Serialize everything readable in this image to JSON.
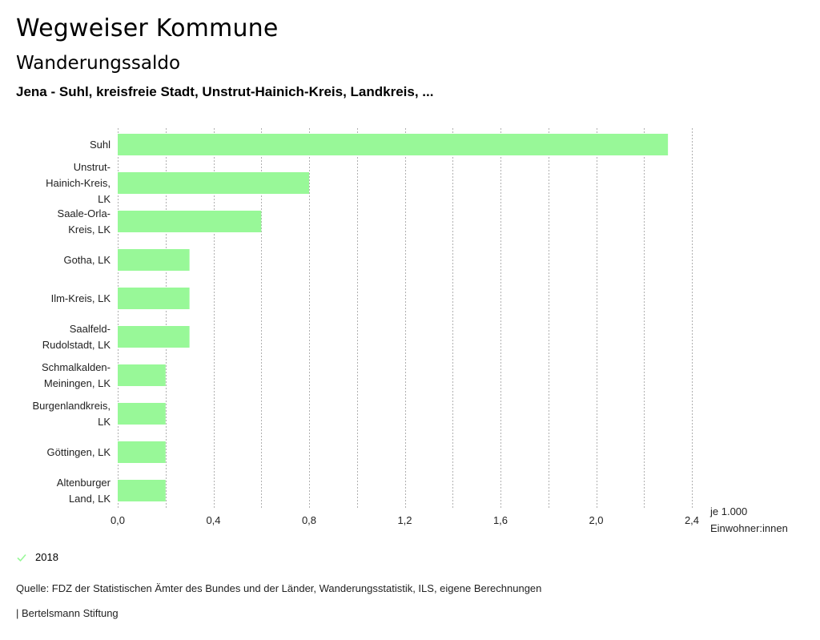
{
  "header": {
    "title": "Wegweiser Kommune",
    "subtitle": "Wanderungssaldo",
    "region": "Jena - Suhl, kreisfreie Stadt, Unstrut-Hainich-Kreis, Landkreis, ..."
  },
  "legend": {
    "items": [
      {
        "label": "2018",
        "icon": "check-icon",
        "color": "#98f898"
      }
    ]
  },
  "footer": {
    "source": "Quelle: FDZ der Statistischen Ämter des Bundes und der Länder, Wanderungsstatistik, ILS, eigene Berechnungen",
    "credit": "| Bertelsmann Stiftung"
  },
  "chart_data": {
    "type": "bar",
    "orientation": "horizontal",
    "title": "Wanderungssaldo",
    "xlabel": "je 1.000 Einwohner:innen",
    "xlabel_lines": [
      "je 1.000",
      "Einwohner:innen"
    ],
    "ylabel": "",
    "xlim": [
      0,
      2.4
    ],
    "xticks": [
      0,
      0.4,
      0.8,
      1.2,
      1.6,
      2.0,
      2.4
    ],
    "xtick_labels": [
      "0,0",
      "0,4",
      "0,8",
      "1,2",
      "1,6",
      "2,0",
      "2,4"
    ],
    "grid_step": 0.2,
    "grid": true,
    "grid_style": "dotted vertical",
    "bar_color": "#98f898",
    "categories": [
      [
        "Suhl"
      ],
      [
        "Unstrut-",
        "Hainich-Kreis,",
        "LK"
      ],
      [
        "Saale-Orla-",
        "Kreis, LK"
      ],
      [
        "Gotha, LK"
      ],
      [
        "Ilm-Kreis, LK"
      ],
      [
        "Saalfeld-",
        "Rudolstadt, LK"
      ],
      [
        "Schmalkalden-",
        "Meiningen, LK"
      ],
      [
        "Burgenlandkreis,",
        "LK"
      ],
      [
        "Göttingen, LK"
      ],
      [
        "Altenburger",
        "Land, LK"
      ]
    ],
    "series": [
      {
        "name": "2018",
        "values": [
          2.3,
          0.8,
          0.6,
          0.3,
          0.3,
          0.3,
          0.2,
          0.2,
          0.2,
          0.2
        ]
      }
    ],
    "legend_position": "bottom-left"
  }
}
